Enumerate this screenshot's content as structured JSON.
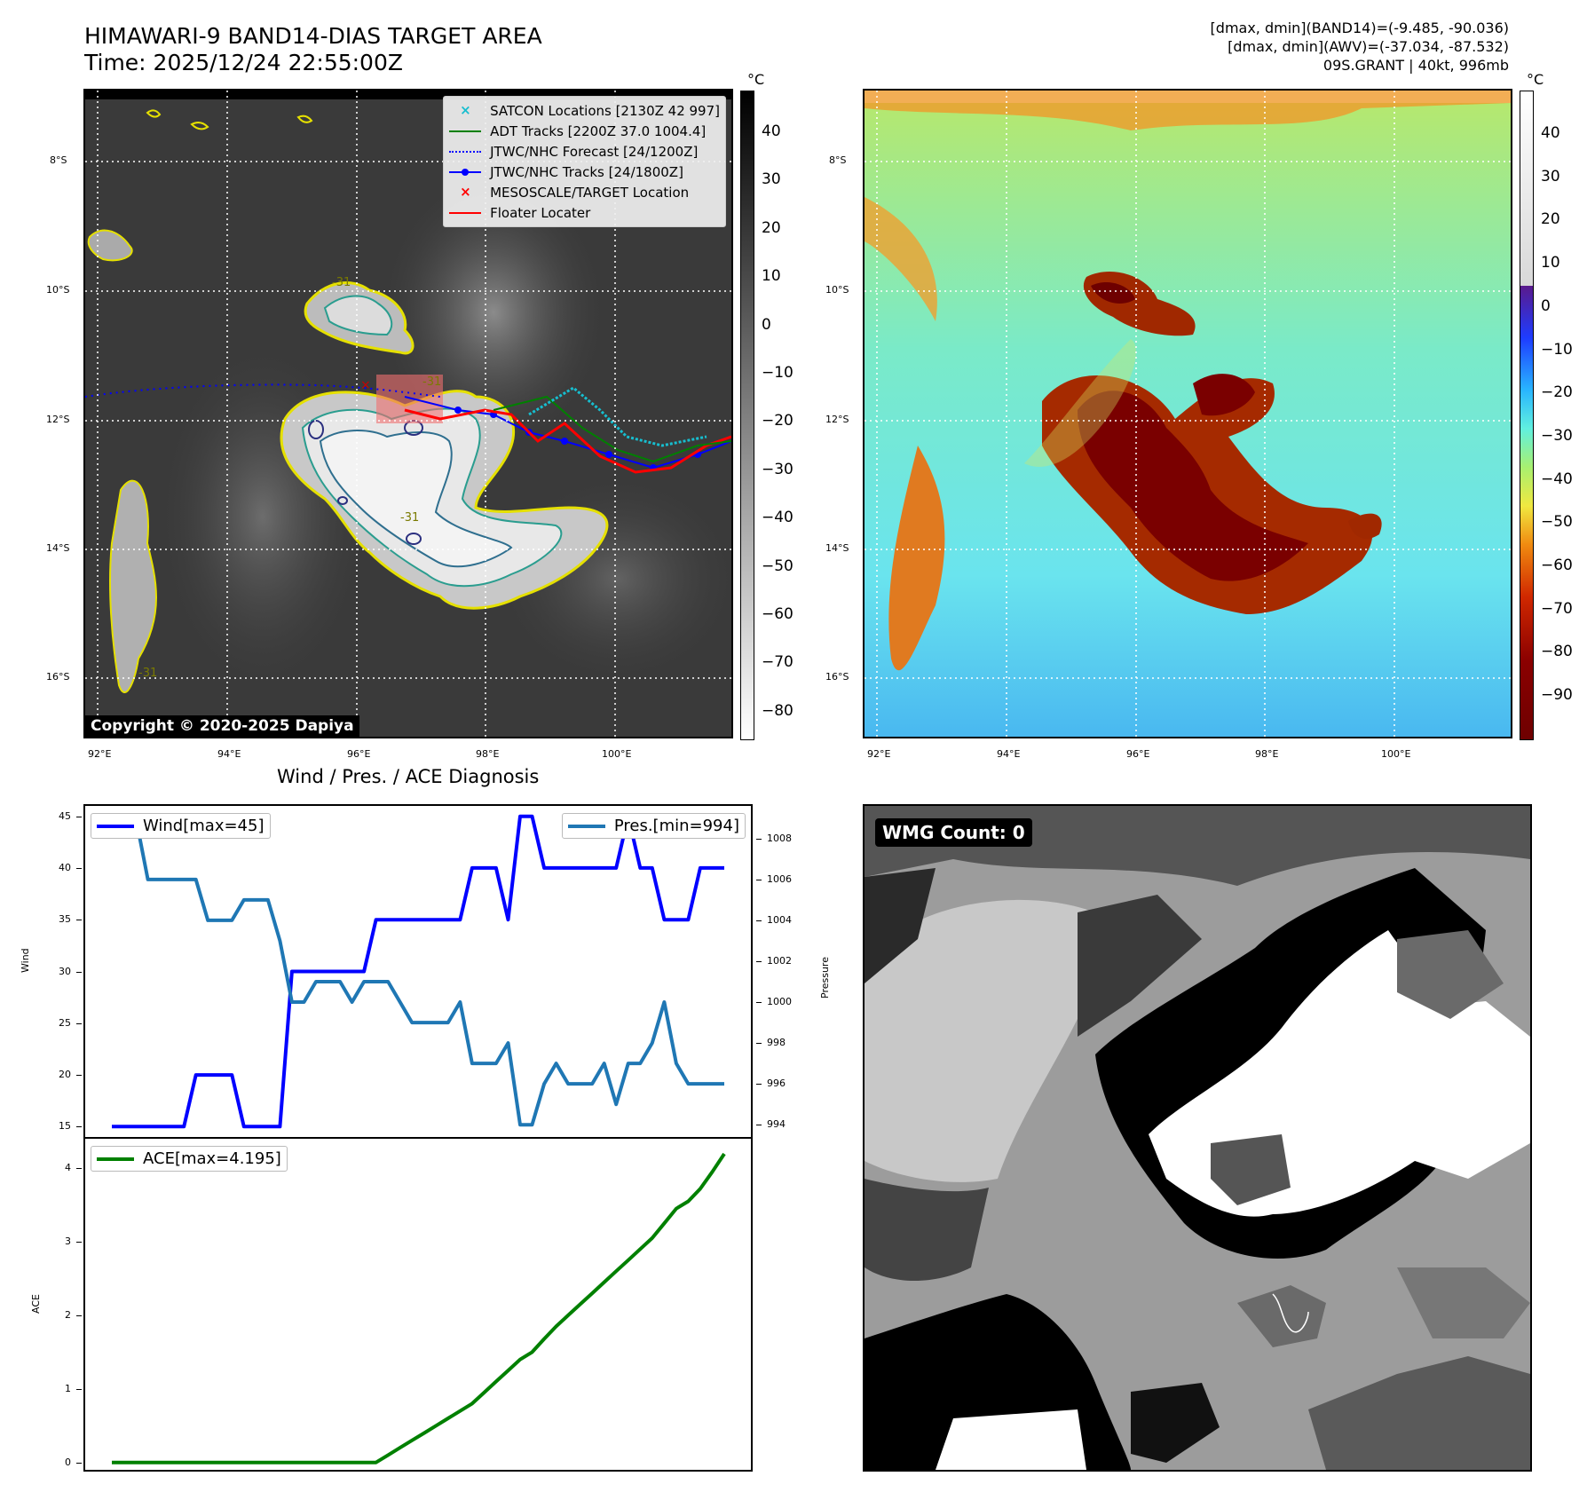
{
  "header": {
    "title_line1": "HIMAWARI-9 BAND14-DIAS TARGET AREA",
    "title_line2": "Time: 2025/12/24 22:55:00Z",
    "info_line1": "[dmax, dmin](BAND14)=(-9.485, -90.036)",
    "info_line2": "[dmax, dmin](AWV)=(-37.034, -87.532)",
    "info_line3": "09S.GRANT | 40kt, 996mb"
  },
  "ir_panel": {
    "lat_labels": [
      "8°S",
      "10°S",
      "12°S",
      "14°S",
      "16°S"
    ],
    "lon_labels": [
      "92°E",
      "94°E",
      "96°E",
      "98°E",
      "100°E"
    ],
    "contour_labels": [
      "-31",
      "-31",
      "-31",
      "-31"
    ],
    "copyright": "Copyright © 2020-2025 Dapiya",
    "colorbar_unit": "°C",
    "colorbar_ticks": [
      "40",
      "30",
      "20",
      "10",
      "0",
      "−10",
      "−20",
      "−30",
      "−40",
      "−50",
      "−60",
      "−70",
      "−80"
    ],
    "legend": [
      {
        "label": "SATCON Locations [2130Z 42 997]",
        "icon": "cyan-x-icon",
        "color": "#17becf"
      },
      {
        "label": "ADT Tracks [2200Z 37.0 1004.4]",
        "icon": "green-line-icon",
        "color": "#008000"
      },
      {
        "label": "JTWC/NHC Forecast [24/1200Z]",
        "icon": "blue-dotted-line-icon",
        "color": "#0000ff"
      },
      {
        "label": "JTWC/NHC Tracks [24/1800Z]",
        "icon": "blue-line-dot-icon",
        "color": "#0000ff"
      },
      {
        "label": "MESOSCALE/TARGET Location",
        "icon": "red-x-icon",
        "color": "#ff0000"
      },
      {
        "label": "Floater Locater",
        "icon": "red-line-icon",
        "color": "#ff0000"
      }
    ]
  },
  "awv_panel": {
    "lat_labels": [
      "8°S",
      "10°S",
      "12°S",
      "14°S",
      "16°S"
    ],
    "lon_labels": [
      "92°E",
      "94°E",
      "96°E",
      "98°E",
      "100°E"
    ],
    "colorbar_unit": "°C",
    "colorbar_ticks": [
      "40",
      "30",
      "20",
      "10",
      "0",
      "−10",
      "−20",
      "−30",
      "−40",
      "−50",
      "−60",
      "−70",
      "−80",
      "−90"
    ]
  },
  "wmg_panel": {
    "label": "WMG Count: 0"
  },
  "chart_data": [
    {
      "type": "line",
      "title": "Wind / Pres. / ACE Diagnosis",
      "xlabel": "",
      "ylabel": "Wind",
      "ylabel_right": "Pressure",
      "ylim": [
        14,
        46
      ],
      "ylim_right": [
        993.4,
        1009.6
      ],
      "yticks": [
        15,
        20,
        25,
        30,
        35,
        40,
        45
      ],
      "yticks_right": [
        994,
        996,
        998,
        1000,
        1002,
        1004,
        1006,
        1008
      ],
      "series": [
        {
          "name": "Wind[max=45]",
          "color": "#0000ff",
          "axis": "left",
          "values": [
            15,
            15,
            15,
            15,
            15,
            15,
            15,
            20,
            20,
            20,
            20,
            15,
            15,
            15,
            15,
            30,
            30,
            30,
            30,
            30,
            30,
            30,
            35,
            35,
            35,
            35,
            35,
            35,
            35,
            35,
            40,
            40,
            40,
            35,
            45,
            45,
            40,
            40,
            40,
            40,
            40,
            40,
            40,
            45,
            40,
            40,
            35,
            35,
            35,
            40,
            40,
            40
          ]
        },
        {
          "name": "Pres.[min=994]",
          "color": "#1f77b4",
          "axis": "right",
          "values": [
            1009,
            1009,
            1009,
            1006,
            1006,
            1006,
            1006,
            1006,
            1004,
            1004,
            1004,
            1005,
            1005,
            1005,
            1003,
            1000,
            1000,
            1001,
            1001,
            1001,
            1000,
            1001,
            1001,
            1001,
            1000,
            999,
            999,
            999,
            999,
            1000,
            997,
            997,
            997,
            998,
            994,
            994,
            996,
            997,
            996,
            996,
            996,
            997,
            995,
            997,
            997,
            998,
            1000,
            997,
            996,
            996,
            996,
            996
          ]
        }
      ]
    },
    {
      "type": "line",
      "xlabel": "",
      "ylabel": "ACE",
      "ylim": [
        -0.1,
        4.4
      ],
      "yticks": [
        0,
        1,
        2,
        3,
        4
      ],
      "series": [
        {
          "name": "ACE[max=4.195]",
          "color": "#008000",
          "values": [
            0,
            0,
            0,
            0,
            0,
            0,
            0,
            0,
            0,
            0,
            0,
            0,
            0,
            0,
            0,
            0,
            0,
            0,
            0,
            0,
            0,
            0,
            0,
            0.1,
            0.2,
            0.3,
            0.4,
            0.5,
            0.6,
            0.7,
            0.8,
            0.95,
            1.1,
            1.25,
            1.4,
            1.5,
            1.68,
            1.85,
            2.0,
            2.15,
            2.3,
            2.45,
            2.6,
            2.75,
            2.9,
            3.05,
            3.25,
            3.45,
            3.55,
            3.72,
            3.95,
            4.195
          ]
        }
      ]
    }
  ]
}
